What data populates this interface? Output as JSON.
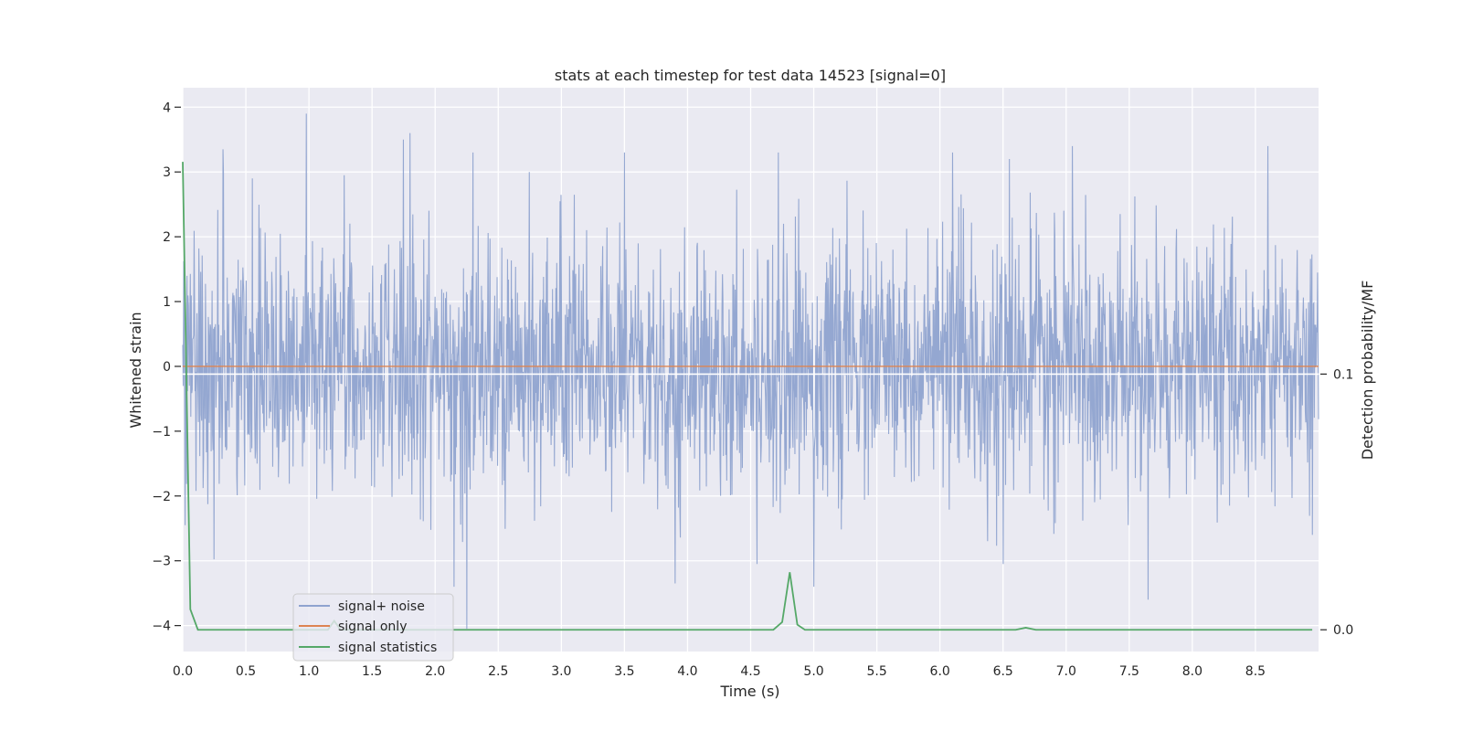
{
  "chart_data": {
    "type": "line",
    "title": "stats at each timestep for test data 14523 [signal=0]",
    "xlabel": "Time (s)",
    "ylabel": "Whitened strain",
    "y2label": "Detection probability/MF",
    "xlim": [
      0.0,
      9.0
    ],
    "ylim": [
      -4.4,
      4.3
    ],
    "y2lim": [
      -0.0085,
      0.212
    ],
    "x_ticks": [
      0.0,
      0.5,
      1.0,
      1.5,
      2.0,
      2.5,
      3.0,
      3.5,
      4.0,
      4.5,
      5.0,
      5.5,
      6.0,
      6.5,
      7.0,
      7.5,
      8.0,
      8.5
    ],
    "x_tick_labels": [
      "0.0",
      "0.5",
      "1.0",
      "1.5",
      "2.0",
      "2.5",
      "3.0",
      "3.5",
      "4.0",
      "4.5",
      "5.0",
      "5.5",
      "6.0",
      "6.5",
      "7.0",
      "7.5",
      "8.0",
      "8.5"
    ],
    "y_ticks": [
      -4,
      -3,
      -2,
      -1,
      0,
      1,
      2,
      3,
      4
    ],
    "y_tick_labels": [
      "−4",
      "−3",
      "−2",
      "−1",
      "0",
      "1",
      "2",
      "3",
      "4"
    ],
    "y2_ticks": [
      0.0,
      0.1
    ],
    "y2_tick_labels": [
      "0.0",
      "0.1"
    ],
    "grid": true,
    "legend_position": "lower-left",
    "colors": {
      "noise": "#8fa3cf",
      "signal_only": "#dd8452",
      "statistics": "#55a868",
      "plot_bg": "#eaeaf2",
      "grid": "#ffffff"
    },
    "series": [
      {
        "name": "signal+ noise",
        "axis": "left",
        "style": "dense-noise",
        "sigma": 0.95,
        "sample_count": 2400,
        "peak_points": [
          {
            "x": 0.02,
            "y": -2.45
          },
          {
            "x": 0.32,
            "y": 3.35
          },
          {
            "x": 0.55,
            "y": 2.9
          },
          {
            "x": 0.98,
            "y": 3.9
          },
          {
            "x": 1.28,
            "y": 2.95
          },
          {
            "x": 1.75,
            "y": 3.5
          },
          {
            "x": 1.8,
            "y": 3.6
          },
          {
            "x": 2.15,
            "y": -3.4
          },
          {
            "x": 2.25,
            "y": -4.05
          },
          {
            "x": 2.3,
            "y": 3.3
          },
          {
            "x": 3.5,
            "y": 3.3
          },
          {
            "x": 3.9,
            "y": -3.35
          },
          {
            "x": 4.55,
            "y": -3.05
          },
          {
            "x": 4.72,
            "y": 3.3
          },
          {
            "x": 5.0,
            "y": -3.4
          },
          {
            "x": 6.1,
            "y": 3.3
          },
          {
            "x": 6.5,
            "y": -3.05
          },
          {
            "x": 6.55,
            "y": 3.2
          },
          {
            "x": 7.05,
            "y": 3.4
          },
          {
            "x": 7.65,
            "y": -3.6
          },
          {
            "x": 8.6,
            "y": 3.4
          },
          {
            "x": 8.95,
            "y": -2.6
          }
        ]
      },
      {
        "name": "signal only",
        "axis": "left",
        "x": [
          0.0,
          9.0
        ],
        "y": [
          0.0,
          0.0
        ]
      },
      {
        "name": "signal statistics",
        "axis": "right",
        "x": [
          0.0,
          0.06,
          0.12,
          1.15,
          1.2,
          1.25,
          4.68,
          4.75,
          4.81,
          4.87,
          4.93,
          6.6,
          6.68,
          6.76,
          8.95
        ],
        "y": [
          0.183,
          0.008,
          0.0,
          0.0,
          0.0035,
          0.0,
          0.0,
          0.003,
          0.0225,
          0.002,
          0.0,
          0.0,
          0.0008,
          0.0,
          0.0
        ]
      }
    ],
    "hline_right_axis": 0.1
  }
}
